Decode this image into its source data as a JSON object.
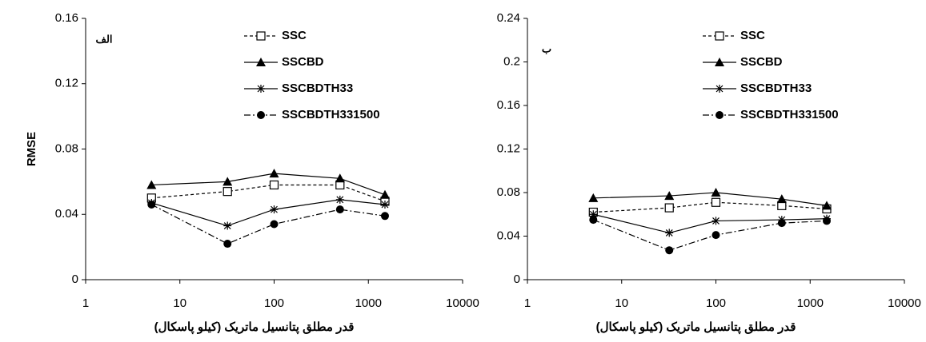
{
  "chart_data": [
    {
      "type": "line",
      "panel_label": "الف",
      "ylabel": "RMSE",
      "xlabel": "قدر مطلق پتانسیل ماتریک (کیلو پاسکال)",
      "x": [
        5,
        32,
        100,
        500,
        1500
      ],
      "xscale": "log",
      "xlim": [
        1,
        10000
      ],
      "xticks": [
        1,
        10,
        100,
        1000,
        10000
      ],
      "ylim": [
        0,
        0.16
      ],
      "yticks": [
        0,
        0.04,
        0.08,
        0.12,
        0.16
      ],
      "series": [
        {
          "name": "SSC",
          "color": "#000000",
          "line": "dashed",
          "marker": "square-open",
          "values": [
            0.05,
            0.054,
            0.058,
            0.058,
            0.048
          ]
        },
        {
          "name": "SSCBD",
          "color": "#000000",
          "line": "solid",
          "marker": "triangle",
          "values": [
            0.058,
            0.06,
            0.065,
            0.062,
            0.052
          ]
        },
        {
          "name": "SSCBDTH33",
          "color": "#000000",
          "line": "solid",
          "marker": "star",
          "values": [
            0.047,
            0.033,
            0.043,
            0.049,
            0.046
          ]
        },
        {
          "name": "SSCBDTH331500",
          "color": "#000000",
          "line": "dashdot",
          "marker": "circle",
          "values": [
            0.046,
            0.022,
            0.034,
            0.043,
            0.039
          ]
        }
      ]
    },
    {
      "type": "line",
      "panel_label": "ب",
      "xlabel": "قدر مطلق پتانسیل ماتریک (کیلو پاسکال)",
      "x": [
        5,
        32,
        100,
        500,
        1500
      ],
      "xscale": "log",
      "xlim": [
        1,
        10000
      ],
      "xticks": [
        1,
        10,
        100,
        1000,
        10000
      ],
      "ylim": [
        0,
        0.24
      ],
      "yticks": [
        0,
        0.04,
        0.08,
        0.12,
        0.16,
        0.2,
        0.24
      ],
      "series": [
        {
          "name": "SSC",
          "color": "#000000",
          "line": "dashed",
          "marker": "square-open",
          "values": [
            0.062,
            0.066,
            0.071,
            0.068,
            0.065
          ]
        },
        {
          "name": "SSCBD",
          "color": "#000000",
          "line": "solid",
          "marker": "triangle",
          "values": [
            0.075,
            0.077,
            0.08,
            0.074,
            0.068
          ]
        },
        {
          "name": "SSCBDTH33",
          "color": "#000000",
          "line": "solid",
          "marker": "star",
          "values": [
            0.06,
            0.043,
            0.054,
            0.055,
            0.056
          ]
        },
        {
          "name": "SSCBDTH331500",
          "color": "#000000",
          "line": "dashdot",
          "marker": "circle",
          "values": [
            0.055,
            0.027,
            0.041,
            0.052,
            0.054
          ]
        }
      ]
    }
  ]
}
